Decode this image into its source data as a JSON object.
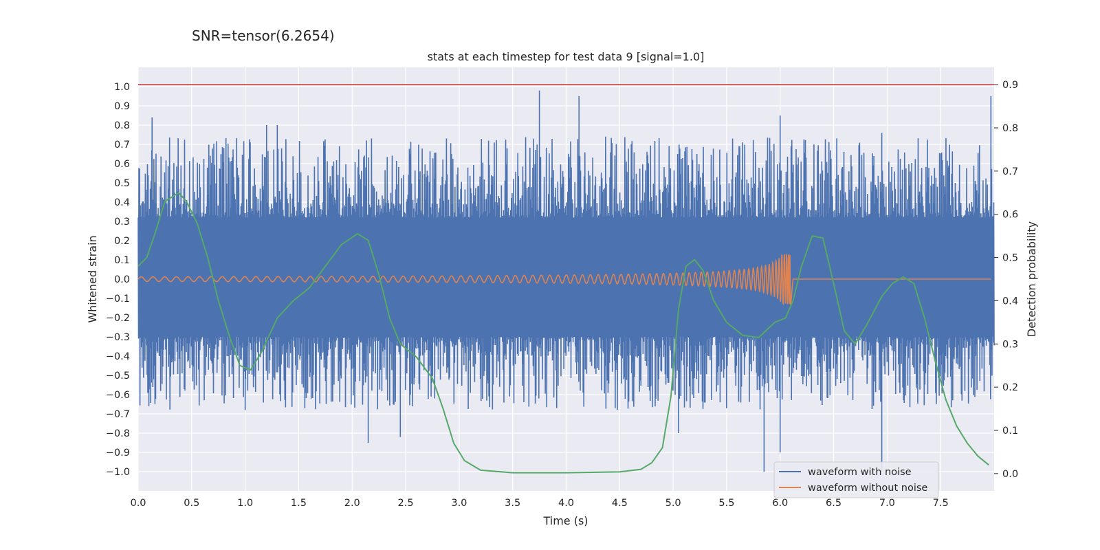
{
  "suptitle": "SNR=tensor(6.2654)",
  "chart_data": {
    "type": "line",
    "title": "stats at each timestep for test data 9 [signal=1.0]",
    "xlabel": "Time (s)",
    "ylabel": "Whitened strain",
    "y2label": "Detection probability",
    "xlim": [
      0.0,
      8.0
    ],
    "ylim": [
      -1.1,
      1.1
    ],
    "y2lim": [
      -0.04,
      0.94
    ],
    "xticks": [
      "0.0",
      "0.5",
      "1.0",
      "1.5",
      "2.0",
      "2.5",
      "3.0",
      "3.5",
      "4.0",
      "4.5",
      "5.0",
      "5.5",
      "6.0",
      "6.5",
      "7.0",
      "7.5"
    ],
    "yticks": [
      "−1.0",
      "−0.9",
      "−0.8",
      "−0.7",
      "−0.6",
      "−0.5",
      "−0.4",
      "−0.3",
      "−0.2",
      "−0.1",
      "0.0",
      "0.1",
      "0.2",
      "0.3",
      "0.4",
      "0.5",
      "0.6",
      "0.7",
      "0.8",
      "0.9",
      "1.0"
    ],
    "y2ticks": [
      "0.0",
      "0.1",
      "0.2",
      "0.3",
      "0.4",
      "0.5",
      "0.6",
      "0.7",
      "0.8",
      "0.9"
    ],
    "grid": true,
    "legend_position": "lower-right",
    "threshold": 0.9,
    "series": [
      {
        "name": "waveform with noise",
        "color": "#4c72b0",
        "style": "noise",
        "axis": "left",
        "band": [
          -0.3,
          0.32
        ],
        "peaks_x": [
          0.13,
          1.2,
          1.3,
          3.75,
          4.12,
          6.0,
          6.95,
          7.97
        ],
        "peaks_y": [
          0.84,
          0.8,
          0.8,
          0.98,
          0.95,
          0.85,
          0.76,
          0.95
        ],
        "troughs_x": [
          0.1,
          1.0,
          2.15,
          2.45,
          5.05,
          5.85,
          6.0,
          6.95
        ],
        "troughs_y": [
          -0.66,
          -0.68,
          -0.85,
          -0.82,
          -0.8,
          -1.0,
          -0.9,
          -1.0
        ]
      },
      {
        "name": "waveform without noise",
        "color": "#dd8452",
        "style": "chirp",
        "axis": "left",
        "t_merger": 6.1,
        "peak_amplitude": 0.13,
        "start_amplitude": 0.012
      },
      {
        "name": "",
        "color": "#55a868",
        "style": "line",
        "axis": "right",
        "x": [
          0.0,
          0.08,
          0.15,
          0.25,
          0.38,
          0.45,
          0.55,
          0.65,
          0.75,
          0.85,
          0.95,
          1.05,
          1.15,
          1.3,
          1.45,
          1.6,
          1.75,
          1.9,
          2.05,
          2.15,
          2.25,
          2.35,
          2.45,
          2.6,
          2.75,
          2.85,
          2.95,
          3.05,
          3.2,
          3.5,
          4.0,
          4.5,
          4.7,
          4.8,
          4.9,
          4.98,
          5.05,
          5.12,
          5.2,
          5.28,
          5.38,
          5.5,
          5.65,
          5.8,
          5.95,
          6.05,
          6.12,
          6.2,
          6.3,
          6.4,
          6.5,
          6.6,
          6.7,
          6.8,
          6.95,
          7.05,
          7.15,
          7.25,
          7.35,
          7.45,
          7.55,
          7.65,
          7.75,
          7.85,
          7.95
        ],
        "y": [
          0.48,
          0.5,
          0.55,
          0.63,
          0.65,
          0.63,
          0.58,
          0.5,
          0.4,
          0.32,
          0.25,
          0.24,
          0.28,
          0.36,
          0.4,
          0.43,
          0.48,
          0.53,
          0.555,
          0.54,
          0.46,
          0.36,
          0.3,
          0.27,
          0.22,
          0.15,
          0.07,
          0.03,
          0.008,
          0.002,
          0.002,
          0.004,
          0.01,
          0.025,
          0.06,
          0.18,
          0.38,
          0.48,
          0.495,
          0.47,
          0.4,
          0.35,
          0.32,
          0.315,
          0.35,
          0.36,
          0.4,
          0.48,
          0.55,
          0.545,
          0.44,
          0.33,
          0.3,
          0.34,
          0.41,
          0.44,
          0.455,
          0.44,
          0.36,
          0.26,
          0.17,
          0.11,
          0.07,
          0.04,
          0.02
        ]
      },
      {
        "name": "",
        "color": "#c44e52",
        "style": "hline",
        "axis": "right",
        "value": 0.9
      }
    ]
  }
}
